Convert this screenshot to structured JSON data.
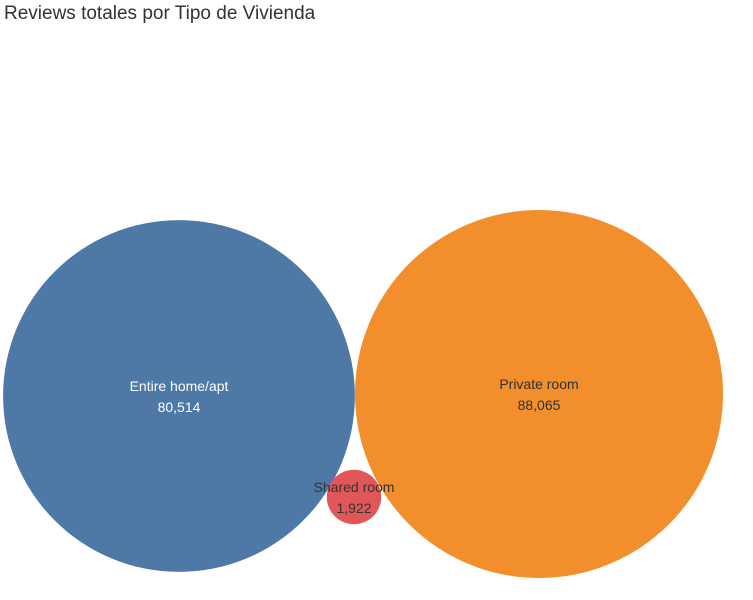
{
  "chart_data": {
    "type": "bubble",
    "title": "Reviews totales por Tipo de Vivienda",
    "measure": "Reviews",
    "dimension": "Tipo de Vivienda",
    "categories": [
      "Entire home/apt",
      "Private room",
      "Shared room"
    ],
    "values": [
      80514,
      88065,
      1922
    ],
    "value_labels": [
      "80,514",
      "88,065",
      "1,922"
    ],
    "colors": [
      "#4e79a7",
      "#f28e2b",
      "#e15759"
    ],
    "label_colors": [
      "#ffffff",
      "#333333",
      "#333333"
    ],
    "legend": "none"
  }
}
